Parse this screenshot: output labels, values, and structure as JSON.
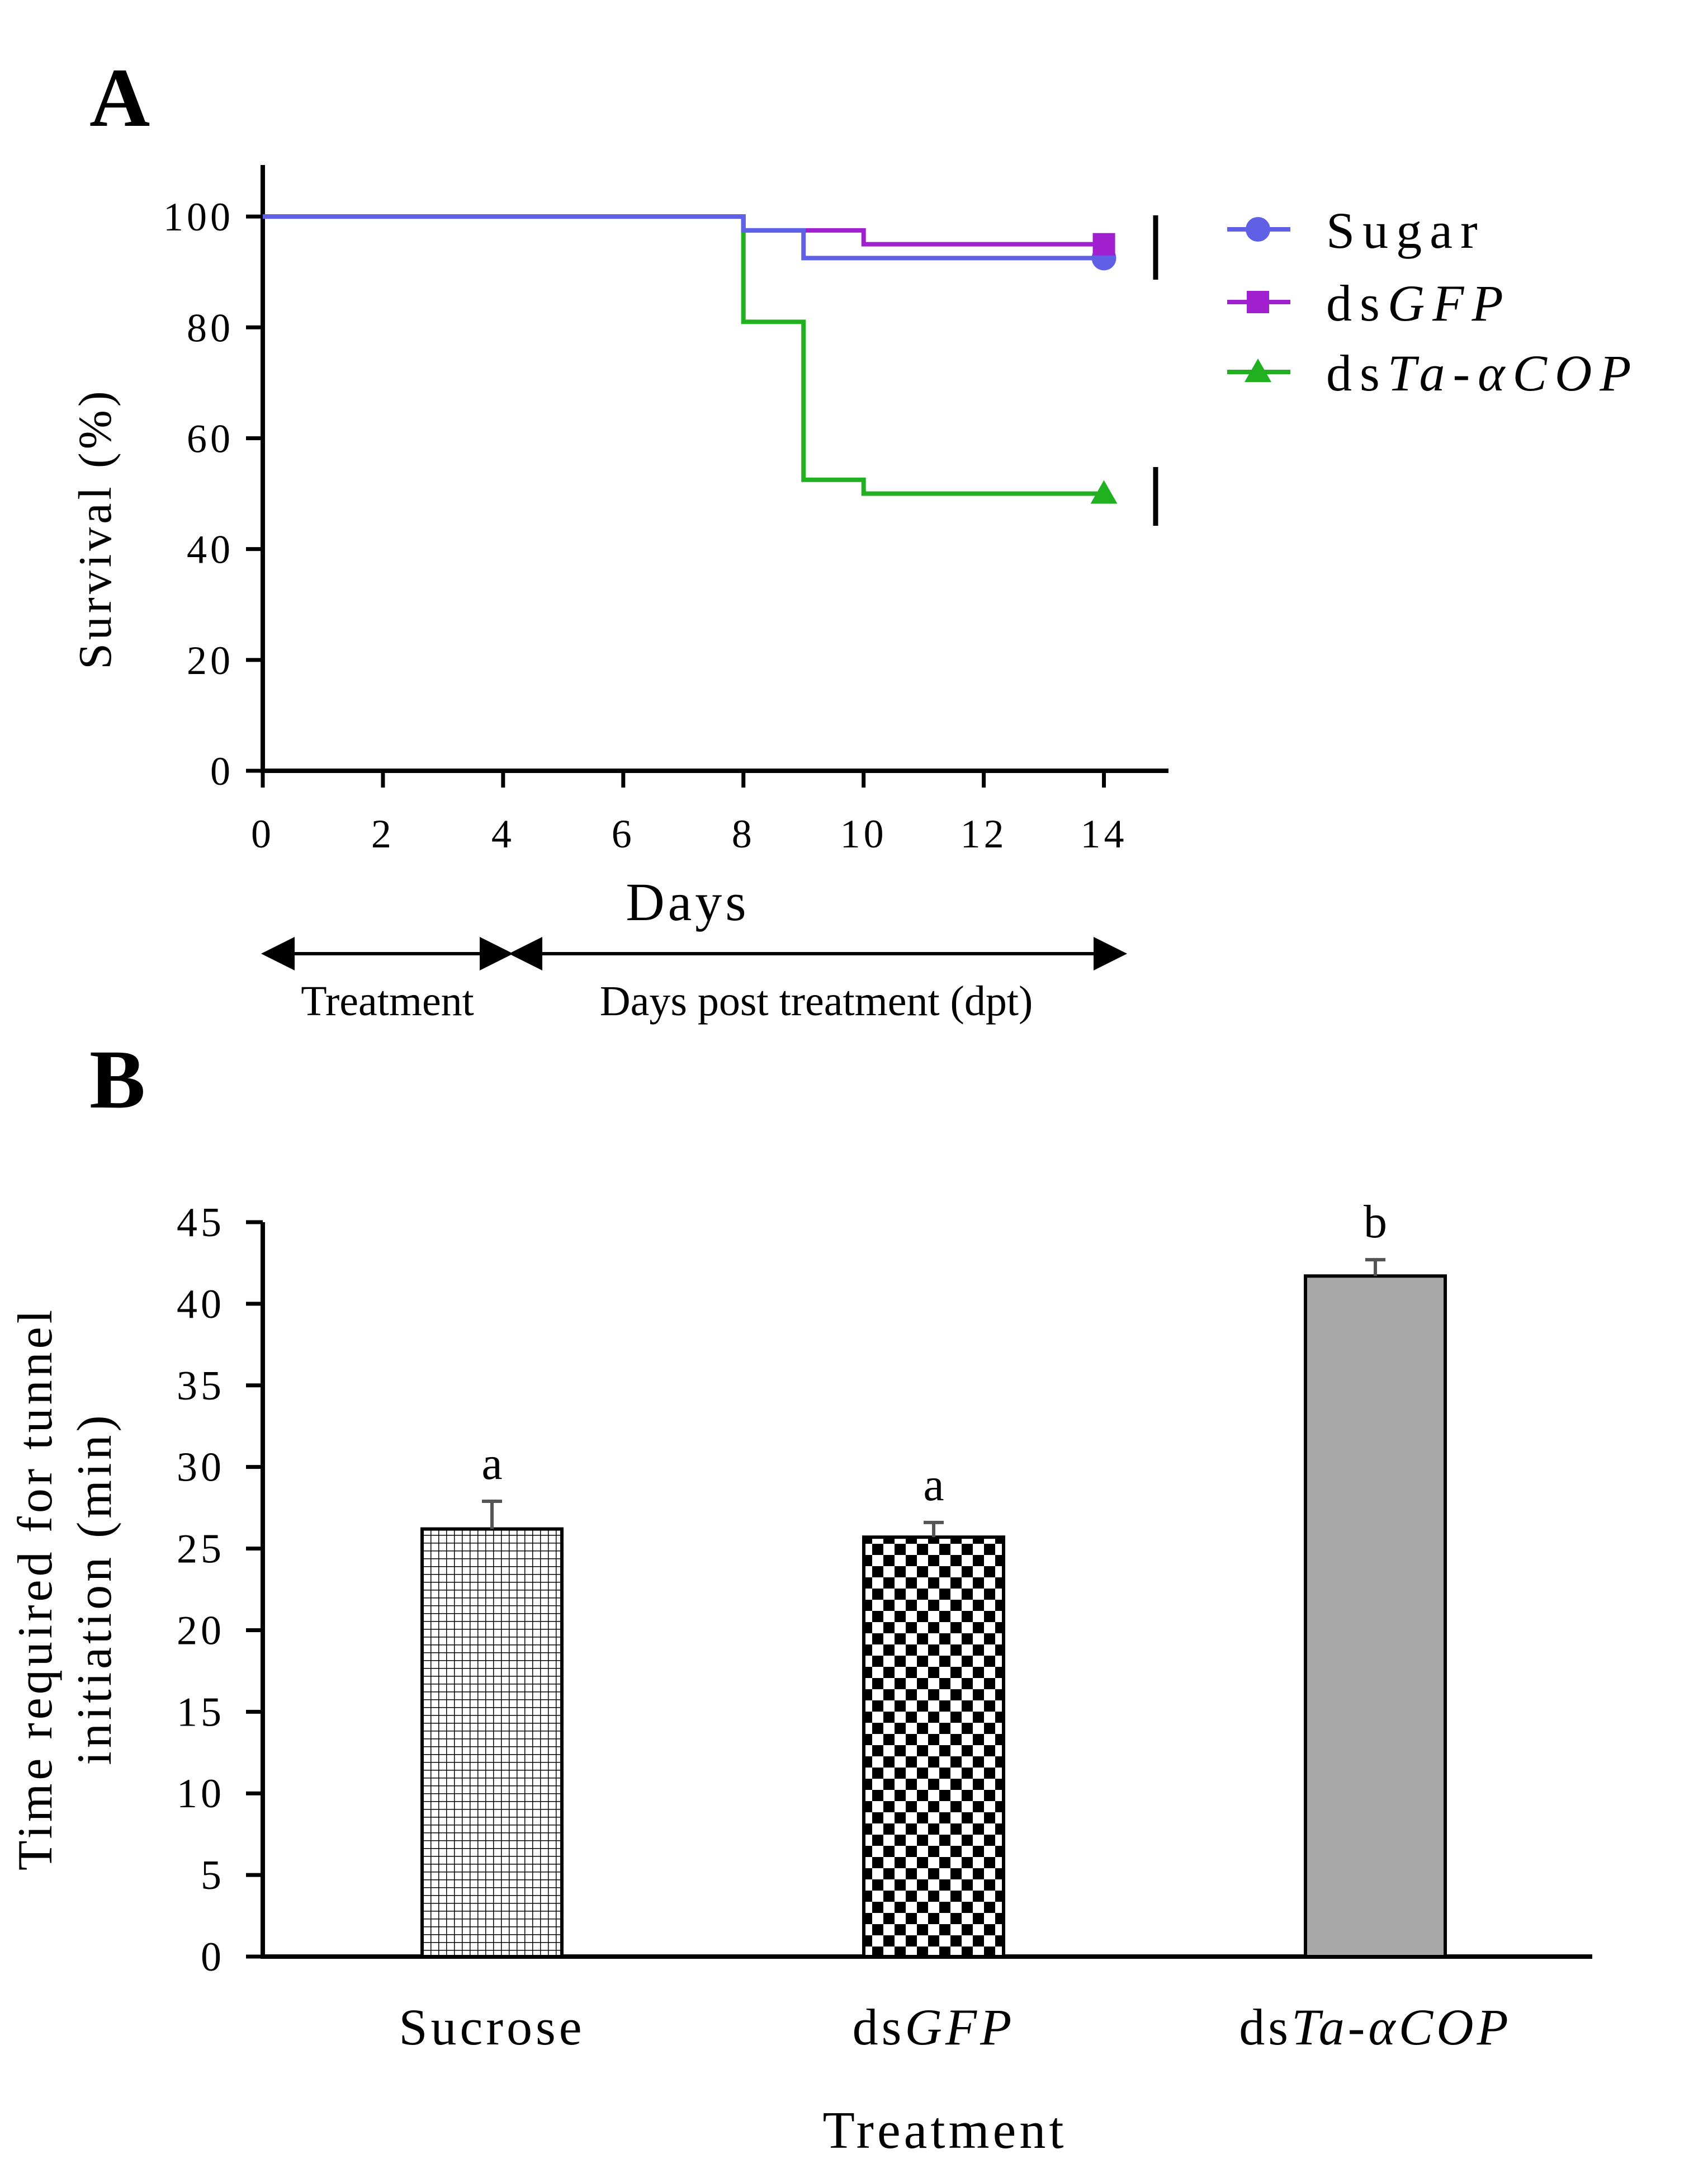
{
  "chart_data": [
    {
      "type": "line",
      "subtype": "step-survival",
      "panel_label": "A",
      "xlabel": "Days",
      "ylabel": "Survival (%)",
      "xlim": [
        0,
        15
      ],
      "ylim": [
        0,
        110
      ],
      "xticks": [
        "0",
        "2",
        "4",
        "6",
        "8",
        "10",
        "12",
        "14"
      ],
      "yticks": [
        "0",
        "20",
        "40",
        "60",
        "80",
        "100"
      ],
      "legend_position": "top-right",
      "series": [
        {
          "name": "Sugar",
          "name_parts": [
            {
              "text": "Sugar",
              "italic": false
            }
          ],
          "color": "#6060e6",
          "marker": "circle",
          "x": [
            0,
            8,
            8,
            9,
            9,
            14
          ],
          "y": [
            100,
            100,
            97.5,
            97.5,
            92.5,
            92.5
          ]
        },
        {
          "name": "dsGFP",
          "name_parts": [
            {
              "text": "ds",
              "italic": false
            },
            {
              "text": "GFP",
              "italic": true
            }
          ],
          "color": "#a020d0",
          "marker": "square",
          "x": [
            0,
            8,
            8,
            10,
            10,
            14
          ],
          "y": [
            100,
            100,
            97.5,
            97.5,
            95,
            95
          ]
        },
        {
          "name": "dsTa-αCOP",
          "name_parts": [
            {
              "text": "ds",
              "italic": false
            },
            {
              "text": "Ta-αCOP",
              "italic": true
            }
          ],
          "color": "#20b020",
          "marker": "triangle",
          "x": [
            0,
            8,
            8,
            9,
            9,
            10,
            10,
            14
          ],
          "y": [
            100,
            100,
            81,
            81,
            52.5,
            52.5,
            50,
            50
          ]
        }
      ],
      "annotations": {
        "treatment_label": "Treatment",
        "treatment_range_days": [
          0,
          4
        ],
        "dpt_label": "Days post treatment (dpt)",
        "dpt_range_days": [
          4,
          14.3
        ]
      }
    },
    {
      "type": "bar",
      "panel_label": "B",
      "xlabel": "Treatment",
      "ylabel_lines": [
        "Time required for tunnel",
        "initiation (min)"
      ],
      "ylim": [
        0,
        45
      ],
      "yticks": [
        "0",
        "5",
        "10",
        "15",
        "20",
        "25",
        "30",
        "35",
        "40",
        "45"
      ],
      "categories": [
        "Sucrose",
        "dsGFP",
        "dsTa-αCOP"
      ],
      "category_parts": [
        [
          {
            "text": "Sucrose",
            "italic": false
          }
        ],
        [
          {
            "text": "ds",
            "italic": false
          },
          {
            "text": "GFP",
            "italic": true
          }
        ],
        [
          {
            "text": "ds",
            "italic": false
          },
          {
            "text": "Ta-αCOP",
            "italic": true
          }
        ]
      ],
      "values": [
        26.2,
        25.7,
        41.7
      ],
      "errors": [
        1.7,
        0.9,
        1.0
      ],
      "significance": [
        "a",
        "a",
        "b"
      ],
      "fills": [
        "grid-pattern",
        "checker-pattern",
        "#a8a8a8"
      ]
    }
  ]
}
